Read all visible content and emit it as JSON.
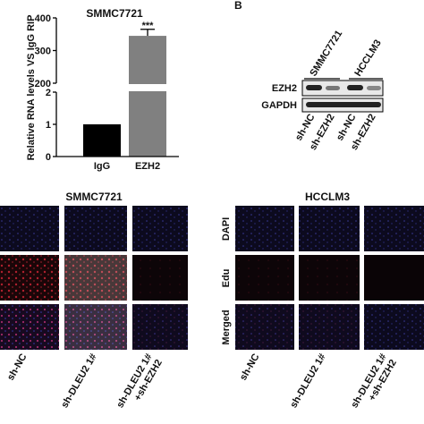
{
  "chart_data": {
    "type": "bar",
    "title": "SMMC7721",
    "y_label": "Relative RNA levels VS IgG RIP",
    "categories": [
      "IgG",
      "EZH2"
    ],
    "values": [
      1,
      345
    ],
    "errors": [
      null,
      20
    ],
    "colors": [
      "#000000",
      "#808080"
    ],
    "annotation": "***",
    "ylim": [
      0,
      400
    ],
    "y_break": [
      2,
      200
    ],
    "yticks": [
      0,
      1,
      2,
      200,
      300,
      400
    ]
  },
  "panel_b": {
    "label": "B",
    "cell_lines": [
      "SMMC7721",
      "HCCLM3"
    ],
    "proteins": [
      "EZH2",
      "GAPDH"
    ],
    "lanes": [
      "sh-NC",
      "sh-EZH2",
      "sh-NC",
      "sh-EZH2"
    ]
  },
  "panel_c": {
    "cell_lines": [
      "SMMC7721",
      "HCCLM3"
    ],
    "stains": [
      "DAPI",
      "Edu",
      "Merged"
    ],
    "groups": [
      [
        "sh-NC"
      ],
      [
        "sh-DLEU2 1#"
      ],
      [
        "sh-DLEU2 1#",
        "+sh-EZH2"
      ]
    ]
  }
}
